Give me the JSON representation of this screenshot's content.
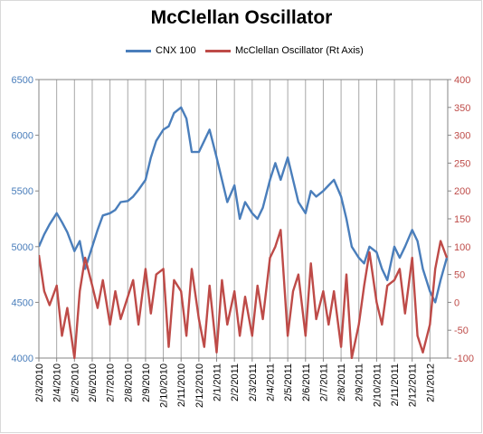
{
  "chart_data": {
    "type": "line",
    "title": "McClellan Oscillator",
    "legend_position": "top",
    "grid": "vertical",
    "x_ticks": [
      "2/3/2010",
      "2/4/2010",
      "2/5/2010",
      "2/6/2010",
      "2/7/2010",
      "2/8/2010",
      "2/9/2010",
      "2/10/2010",
      "2/11/2010",
      "2/12/2010",
      "2/1/2011",
      "2/2/2011",
      "2/3/2011",
      "2/4/2011",
      "2/5/2011",
      "2/6/2011",
      "2/7/2011",
      "2/8/2011",
      "2/9/2011",
      "2/10/2011",
      "2/11/2011",
      "2/12/2011",
      "2/1/2012"
    ],
    "y_left": {
      "ticks": [
        "4000",
        "4500",
        "5000",
        "5500",
        "6000",
        "6500"
      ],
      "min": 4000,
      "max": 6500,
      "color": "#4a7ebb"
    },
    "y_right": {
      "ticks": [
        "-100",
        "-50",
        "0",
        "50",
        "100",
        "150",
        "200",
        "250",
        "300",
        "350",
        "400"
      ],
      "min": -100,
      "max": 400,
      "color": "#be4b48"
    },
    "series": [
      {
        "name": "CNX 100",
        "axis": "left",
        "color": "#4a7ebb",
        "x": [
          0,
          0.3,
          0.6,
          1,
          1.3,
          1.6,
          2,
          2.3,
          2.6,
          3,
          3.3,
          3.6,
          4,
          4.3,
          4.6,
          5,
          5.3,
          5.6,
          6,
          6.3,
          6.6,
          7,
          7.3,
          7.6,
          8,
          8.3,
          8.6,
          9,
          9.3,
          9.6,
          10,
          10.3,
          10.6,
          11,
          11.3,
          11.6,
          12,
          12.3,
          12.6,
          13,
          13.3,
          13.6,
          14,
          14.3,
          14.6,
          15,
          15.3,
          15.6,
          16,
          16.3,
          16.6,
          17,
          17.3,
          17.6,
          18,
          18.3,
          18.6,
          19,
          19.3,
          19.6,
          20,
          20.3,
          20.6,
          21,
          21.3,
          21.6,
          22,
          22.3,
          22.6,
          22.95
        ],
        "values": [
          5000,
          5110,
          5200,
          5300,
          5220,
          5130,
          4960,
          5050,
          4800,
          5000,
          5150,
          5280,
          5300,
          5330,
          5400,
          5410,
          5450,
          5510,
          5600,
          5800,
          5950,
          6050,
          6080,
          6200,
          6250,
          6150,
          5850,
          5850,
          5950,
          6050,
          5800,
          5600,
          5400,
          5550,
          5250,
          5400,
          5300,
          5250,
          5350,
          5600,
          5750,
          5600,
          5800,
          5600,
          5400,
          5300,
          5500,
          5450,
          5500,
          5550,
          5600,
          5450,
          5250,
          5000,
          4900,
          4850,
          5000,
          4950,
          4800,
          4700,
          5000,
          4900,
          5000,
          5150,
          5050,
          4800,
          4600,
          4500,
          4700,
          4900
        ]
      },
      {
        "name": "McClellan Oscillator (Rt Axis)",
        "axis": "right",
        "color": "#be4b48",
        "x": [
          0,
          0.3,
          0.6,
          1,
          1.3,
          1.6,
          2,
          2.3,
          2.6,
          3,
          3.3,
          3.6,
          4,
          4.3,
          4.6,
          5,
          5.3,
          5.6,
          6,
          6.3,
          6.6,
          7,
          7.3,
          7.6,
          8,
          8.3,
          8.6,
          9,
          9.3,
          9.6,
          10,
          10.3,
          10.6,
          11,
          11.3,
          11.6,
          12,
          12.3,
          12.6,
          13,
          13.3,
          13.6,
          14,
          14.3,
          14.6,
          15,
          15.3,
          15.6,
          16,
          16.3,
          16.6,
          17,
          17.3,
          17.6,
          18,
          18.3,
          18.6,
          19,
          19.3,
          19.6,
          20,
          20.3,
          20.6,
          21,
          21.3,
          21.6,
          22,
          22.3,
          22.6,
          22.95
        ],
        "values": [
          85,
          20,
          -5,
          30,
          -60,
          -10,
          -100,
          20,
          80,
          30,
          -10,
          40,
          -40,
          20,
          -30,
          10,
          40,
          -40,
          60,
          -20,
          50,
          60,
          -80,
          40,
          20,
          -60,
          60,
          -30,
          -80,
          30,
          -90,
          40,
          -40,
          20,
          -60,
          10,
          -60,
          30,
          -30,
          80,
          100,
          130,
          -60,
          20,
          50,
          -60,
          70,
          -30,
          20,
          -40,
          20,
          -80,
          50,
          -100,
          -40,
          30,
          90,
          0,
          -40,
          30,
          40,
          60,
          -20,
          80,
          -60,
          -90,
          -40,
          60,
          110,
          80
        ]
      }
    ]
  }
}
